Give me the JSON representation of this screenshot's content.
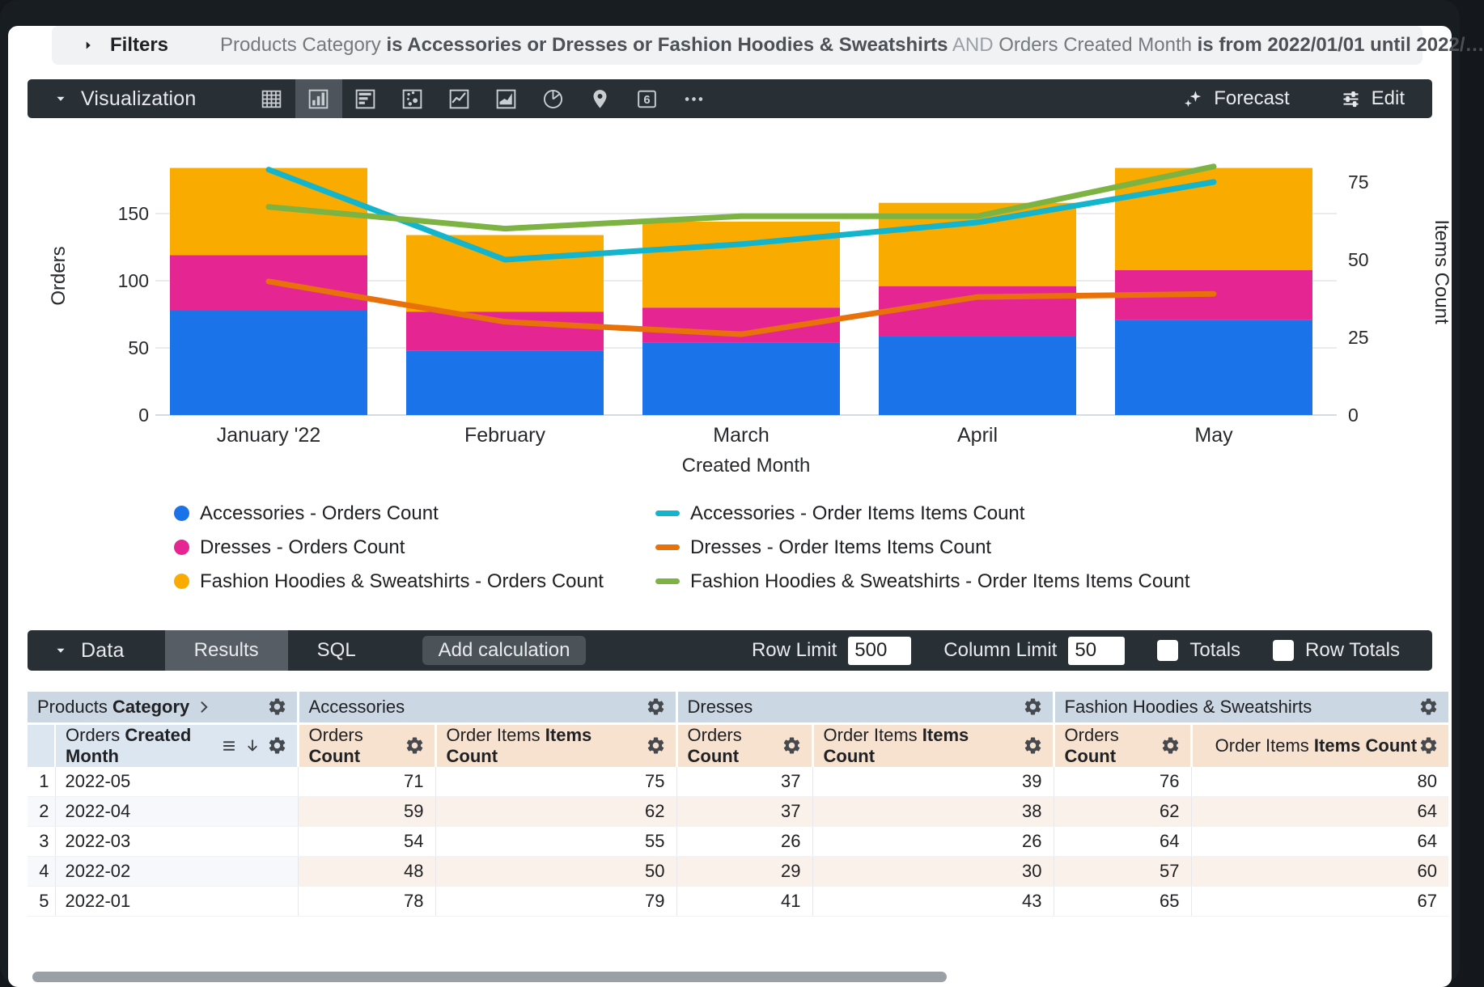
{
  "filters_bar": {
    "label": "Filters",
    "segments": [
      {
        "text": "Products Category ",
        "style": "normal"
      },
      {
        "text": "is Accessories or Dresses or Fashion Hoodies & Sweatshirts",
        "style": "bold"
      },
      {
        "text": " AND ",
        "style": "muted"
      },
      {
        "text": "Orders Created Month ",
        "style": "normal"
      },
      {
        "text": "is from 2022/01/01 until 2022/…",
        "style": "bold"
      }
    ]
  },
  "viz_toolbar": {
    "label": "Visualization",
    "icons": [
      {
        "name": "table",
        "selected": false
      },
      {
        "name": "column",
        "selected": true
      },
      {
        "name": "bar",
        "selected": false
      },
      {
        "name": "scatter",
        "selected": false
      },
      {
        "name": "line",
        "selected": false
      },
      {
        "name": "area",
        "selected": false
      },
      {
        "name": "pie",
        "selected": false
      },
      {
        "name": "map",
        "selected": false
      },
      {
        "name": "single-value",
        "selected": false
      },
      {
        "name": "more",
        "selected": false
      }
    ],
    "forecast_label": "Forecast",
    "edit_label": "Edit"
  },
  "chart_data": {
    "type": "bar",
    "stacked": true,
    "line_overlay": true,
    "grid": true,
    "legend_position": "bottom",
    "categories": [
      "January '22",
      "February",
      "March",
      "April",
      "May"
    ],
    "xlabel": "Created Month",
    "left_axis": {
      "label": "Orders",
      "ticks": [
        0,
        50,
        100,
        150
      ],
      "range": [
        0,
        215
      ]
    },
    "right_axis": {
      "label": "Items Count",
      "ticks": [
        0,
        25,
        50,
        75
      ],
      "range": [
        0,
        93
      ]
    },
    "bar_series": [
      {
        "name": "Accessories - Orders Count",
        "color": "#1A73E8",
        "values": [
          78,
          48,
          54,
          59,
          71
        ]
      },
      {
        "name": "Dresses - Orders Count",
        "color": "#E52592",
        "values": [
          41,
          29,
          26,
          37,
          37
        ]
      },
      {
        "name": "Fashion Hoodies & Sweatshirts - Orders Count",
        "color": "#F9AB00",
        "values": [
          65,
          57,
          64,
          62,
          76
        ]
      }
    ],
    "line_series": [
      {
        "name": "Accessories - Order Items Items Count",
        "color": "#12B5CB",
        "values": [
          79,
          50,
          55,
          62,
          75
        ]
      },
      {
        "name": "Dresses - Order Items Items Count",
        "color": "#E8710A",
        "values": [
          43,
          30,
          26,
          38,
          39
        ]
      },
      {
        "name": "Fashion Hoodies & Sweatshirts - Order Items Items Count",
        "color": "#7CB342",
        "values": [
          67,
          60,
          64,
          64,
          80
        ]
      }
    ]
  },
  "data_toolbar": {
    "label": "Data",
    "tabs": [
      {
        "label": "Results",
        "active": true
      },
      {
        "label": "SQL",
        "active": false
      }
    ],
    "add_calculation_label": "Add calculation",
    "row_limit_label": "Row Limit",
    "row_limit_value": "500",
    "column_limit_label": "Column Limit",
    "column_limit_value": "50",
    "totals_label": "Totals",
    "row_totals_label": "Row Totals"
  },
  "table": {
    "pivot_header": {
      "normal": "Products ",
      "bold": "Category"
    },
    "dimension_header": {
      "normal": "Orders ",
      "bold": "Created Month"
    },
    "groups": [
      "Accessories",
      "Dresses",
      "Fashion Hoodies & Sweatshirts"
    ],
    "measure_headers": [
      {
        "normal": "Orders ",
        "bold": "Count"
      },
      {
        "normal": "Order Items ",
        "bold": "Items Count"
      }
    ],
    "rows": [
      {
        "index": 1,
        "month": "2022-05",
        "values": [
          71,
          75,
          37,
          39,
          76,
          80
        ]
      },
      {
        "index": 2,
        "month": "2022-04",
        "values": [
          59,
          62,
          37,
          38,
          62,
          64
        ]
      },
      {
        "index": 3,
        "month": "2022-03",
        "values": [
          54,
          55,
          26,
          26,
          64,
          64
        ]
      },
      {
        "index": 4,
        "month": "2022-02",
        "values": [
          48,
          50,
          29,
          30,
          57,
          60
        ]
      },
      {
        "index": 5,
        "month": "2022-01",
        "values": [
          78,
          79,
          41,
          43,
          65,
          67
        ]
      }
    ]
  }
}
